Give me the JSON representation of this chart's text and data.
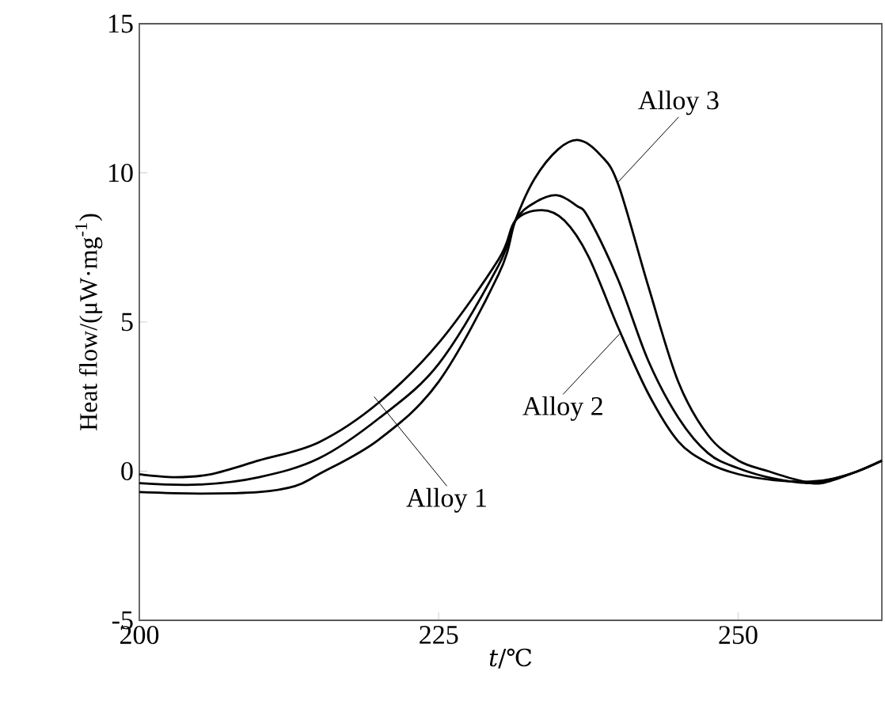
{
  "chart_data": {
    "type": "line",
    "xlabel": "*t*/℃",
    "ylabel": "Heat flow/(μW·mg$^{-1}$)",
    "xlim": [
      200,
      262
    ],
    "ylim": [
      -5,
      15
    ],
    "xticks": [
      200,
      225,
      250
    ],
    "yticks": [
      -5,
      0,
      5,
      10,
      15
    ],
    "grid": false,
    "marker": "none",
    "line_style": "solid",
    "series": [
      {
        "color": "#000000",
        "x": [
          200,
          203,
          206,
          210,
          215,
          220,
          225,
          230,
          231.4,
          233.6,
          235.5,
          237.5,
          240,
          242.5,
          245,
          247.5,
          250,
          253,
          256,
          258,
          260,
          262
        ],
        "values": [
          -0.1,
          -0.2,
          -0.1,
          0.36,
          0.97,
          2.3,
          4.3,
          7.1,
          8.4,
          8.75,
          8.4,
          7.2,
          4.8,
          2.6,
          1.0,
          0.27,
          -0.1,
          -0.3,
          -0.35,
          -0.25,
          0,
          0.35
        ]
      },
      {
        "color": "#000000",
        "x": [
          200,
          205,
          210,
          215,
          220,
          225,
          230,
          231.4,
          233,
          234.9,
          236.5,
          237.5,
          240,
          242.5,
          245,
          247.5,
          250,
          253,
          256,
          258,
          260,
          262
        ],
        "values": [
          -0.4,
          -0.45,
          -0.2,
          0.43,
          1.77,
          3.6,
          6.9,
          8.4,
          9.0,
          9.25,
          8.9,
          8.5,
          6.4,
          3.7,
          1.8,
          0.6,
          0.1,
          -0.25,
          -0.4,
          -0.25,
          0,
          0.35
        ]
      },
      {
        "color": "#000000",
        "x": [
          200,
          205,
          210,
          213,
          215,
          220,
          225,
          230,
          231.4,
          233,
          235,
          236.7,
          238.5,
          240,
          242.5,
          245,
          247.5,
          250,
          252.5,
          255,
          257,
          260,
          262
        ],
        "values": [
          -0.7,
          -0.75,
          -0.7,
          -0.5,
          -0.1,
          1.06,
          3.0,
          6.6,
          8.4,
          9.8,
          10.8,
          11.1,
          10.6,
          9.6,
          6.2,
          3.0,
          1.2,
          0.36,
          0,
          -0.3,
          -0.4,
          0,
          0.35
        ]
      }
    ],
    "annotations": [
      {
        "text": "Alloy 1",
        "x": 219.6,
        "y": 2.5
      },
      {
        "text": "Alloy 2",
        "x": 240.1,
        "y": 4.6
      },
      {
        "text": "Alloy 3",
        "x": 240,
        "y": 9.7
      }
    ]
  }
}
